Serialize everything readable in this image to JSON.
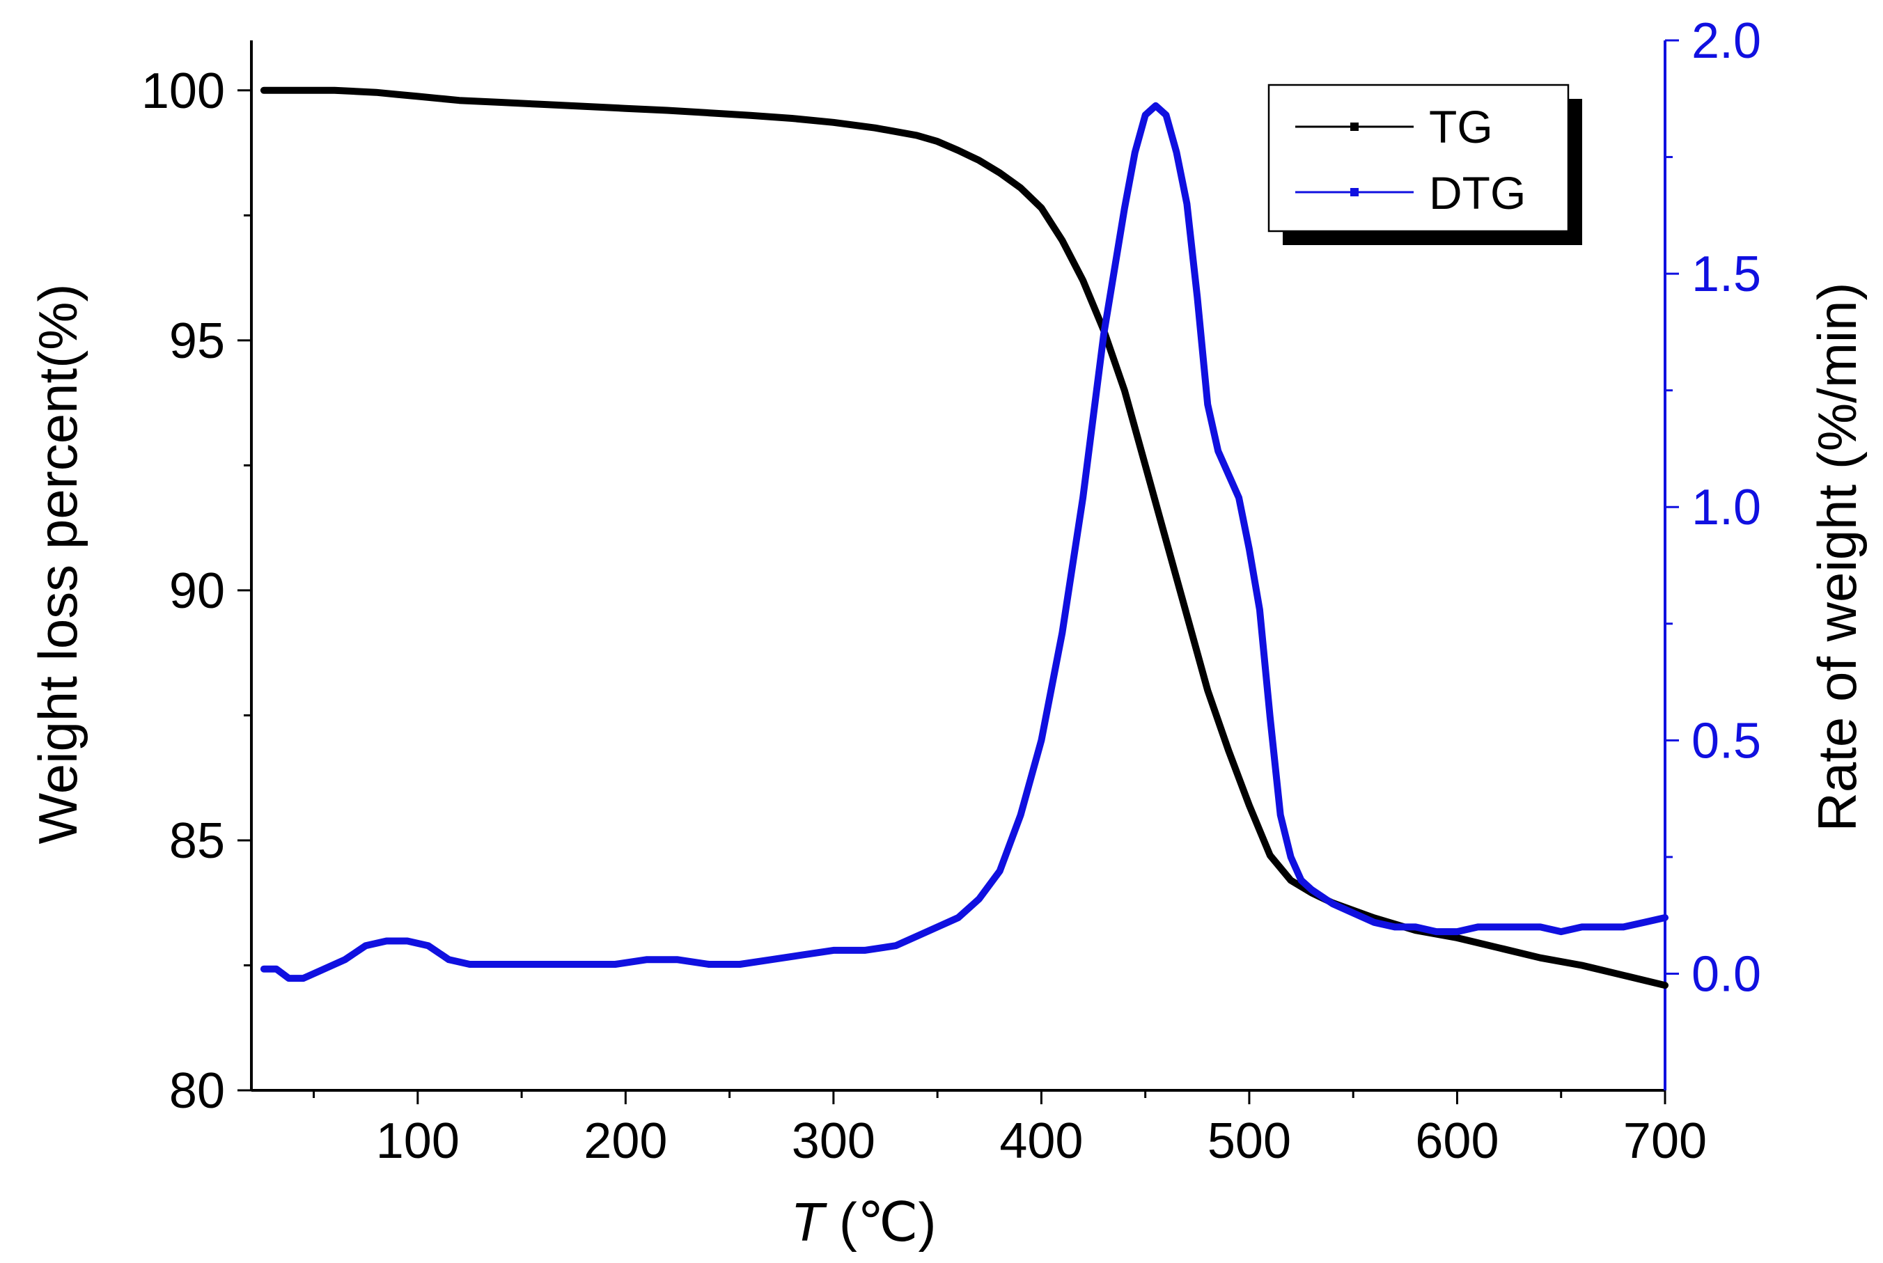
{
  "chart_data": {
    "type": "line",
    "x": {
      "label_var": "T",
      "label_unit": " (℃)",
      "lim": [
        20,
        700
      ],
      "major_ticks": [
        100,
        200,
        300,
        400,
        500,
        600,
        700
      ],
      "tick_labels": [
        "100",
        "200",
        "300",
        "400",
        "500",
        "600",
        "700"
      ],
      "minor_ticks": [
        50,
        150,
        250,
        350,
        450,
        550,
        650
      ]
    },
    "y_left": {
      "label": "Weight loss percent(%)",
      "lim": [
        80,
        101
      ],
      "major_ticks": [
        80,
        85,
        90,
        95,
        100
      ],
      "tick_labels": [
        "80",
        "85",
        "90",
        "95",
        "100"
      ],
      "minor_ticks": [
        82.5,
        87.5,
        92.5,
        97.5
      ],
      "color": "#000000"
    },
    "y_right": {
      "label": "Rate of weight (%/min)",
      "lim": [
        -0.25,
        2.0
      ],
      "major_ticks": [
        0.0,
        0.5,
        1.0,
        1.5,
        2.0
      ],
      "tick_labels": [
        "0.0",
        "0.5",
        "1.0",
        "1.5",
        "2.0"
      ],
      "minor_ticks": [
        0.25,
        0.75,
        1.25,
        1.75
      ],
      "color": "#1010e0"
    },
    "legend": {
      "position": "top-right",
      "entries": [
        "TG",
        "DTG"
      ]
    },
    "series": [
      {
        "name": "TG",
        "axis": "left",
        "color": "#000000",
        "x": [
          26,
          40,
          60,
          70,
          80,
          90,
          100,
          110,
          120,
          140,
          160,
          180,
          200,
          220,
          240,
          260,
          280,
          300,
          320,
          340,
          350,
          360,
          370,
          380,
          390,
          400,
          410,
          420,
          430,
          440,
          450,
          460,
          470,
          480,
          490,
          500,
          510,
          520,
          530,
          540,
          560,
          580,
          600,
          620,
          640,
          660,
          680,
          700
        ],
        "y": [
          100.0,
          100.0,
          100.0,
          99.98,
          99.96,
          99.92,
          99.88,
          99.84,
          99.8,
          99.76,
          99.72,
          99.68,
          99.64,
          99.6,
          99.55,
          99.5,
          99.44,
          99.36,
          99.25,
          99.1,
          98.98,
          98.8,
          98.6,
          98.35,
          98.05,
          97.65,
          97.0,
          96.2,
          95.2,
          94.0,
          92.5,
          91.0,
          89.5,
          88.0,
          86.8,
          85.7,
          84.7,
          84.2,
          83.95,
          83.75,
          83.45,
          83.2,
          83.05,
          82.85,
          82.65,
          82.5,
          82.3,
          82.1
        ]
      },
      {
        "name": "DTG",
        "axis": "right",
        "color": "#1010e0",
        "x": [
          26,
          32,
          38,
          45,
          55,
          65,
          75,
          85,
          95,
          105,
          115,
          125,
          135,
          150,
          165,
          180,
          195,
          210,
          225,
          240,
          255,
          270,
          285,
          300,
          315,
          330,
          340,
          350,
          360,
          370,
          380,
          390,
          400,
          410,
          420,
          430,
          440,
          445,
          450,
          455,
          460,
          465,
          470,
          475,
          480,
          485,
          490,
          495,
          500,
          505,
          510,
          515,
          520,
          525,
          530,
          540,
          550,
          560,
          570,
          580,
          590,
          600,
          610,
          620,
          630,
          640,
          650,
          660,
          670,
          680,
          690,
          700
        ],
        "y": [
          0.01,
          0.01,
          -0.01,
          -0.01,
          0.01,
          0.03,
          0.06,
          0.07,
          0.07,
          0.06,
          0.03,
          0.02,
          0.02,
          0.02,
          0.02,
          0.02,
          0.02,
          0.03,
          0.03,
          0.02,
          0.02,
          0.03,
          0.04,
          0.05,
          0.05,
          0.06,
          0.08,
          0.1,
          0.12,
          0.16,
          0.22,
          0.34,
          0.5,
          0.73,
          1.02,
          1.37,
          1.64,
          1.76,
          1.84,
          1.86,
          1.84,
          1.76,
          1.65,
          1.45,
          1.22,
          1.12,
          1.07,
          1.02,
          0.91,
          0.78,
          0.55,
          0.34,
          0.25,
          0.2,
          0.18,
          0.15,
          0.13,
          0.11,
          0.1,
          0.1,
          0.09,
          0.09,
          0.1,
          0.1,
          0.1,
          0.1,
          0.09,
          0.1,
          0.1,
          0.1,
          0.11,
          0.12
        ]
      }
    ]
  }
}
